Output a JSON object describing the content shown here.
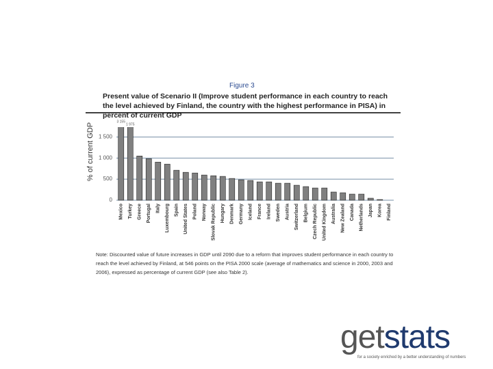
{
  "figure_label": "Figure 3",
  "chart_data": {
    "type": "bar",
    "title": "Present value of Scenario II (Improve student performance in each country to reach the level achieved by Finland, the country with the highest performance in PISA) in percent of current GDP",
    "y_label": "% of current GDP",
    "categories": [
      "Mexico",
      "Turkey",
      "Greece",
      "Portugal",
      "Italy",
      "Luxembourg",
      "Spain",
      "United States",
      "Poland",
      "Norway",
      "Slovak Republic",
      "Hungary",
      "Denmark",
      "Germany",
      "Iceland",
      "France",
      "Ireland",
      "Sweden",
      "Austria",
      "Switzerland",
      "Belgium",
      "Czech Republic",
      "United Kingdom",
      "Australia",
      "New Zealand",
      "Canada",
      "Netherlands",
      "Japan",
      "Korea",
      "Finland"
    ],
    "values": [
      3155,
      1975,
      1048,
      984,
      903,
      855,
      710,
      661,
      645,
      597,
      580,
      565,
      516,
      484,
      468,
      435,
      435,
      403,
      403,
      355,
      323,
      290,
      290,
      194,
      177,
      145,
      145,
      48,
      16,
      0
    ],
    "value_labels": [
      "3 155",
      "1 975",
      null,
      null,
      null,
      null,
      null,
      null,
      null,
      null,
      null,
      null,
      null,
      null,
      null,
      null,
      null,
      null,
      null,
      null,
      null,
      null,
      null,
      null,
      null,
      null,
      null,
      null,
      null,
      null
    ],
    "color": "#808080",
    "ylim": [
      0,
      1700
    ],
    "yticks": [
      0,
      500,
      {
        "value": 1000,
        "label": "1 000"
      },
      {
        "value": 1500,
        "label": "1 500"
      }
    ],
    "grid": true
  },
  "note": "Note: Discounted value of future increases in GDP until 2090 due to a reform that improves student performance in each country to reach the level achieved by Finland, at 546 points on the PISA 2000 scale (average of mathematics and science in 2000, 2003 and 2006), expressed as percentage of current GDP (see also Table 2).",
  "logo": {
    "get": "get",
    "stats": "stats",
    "tagline": "for a society enriched by a better understanding of numbers"
  }
}
